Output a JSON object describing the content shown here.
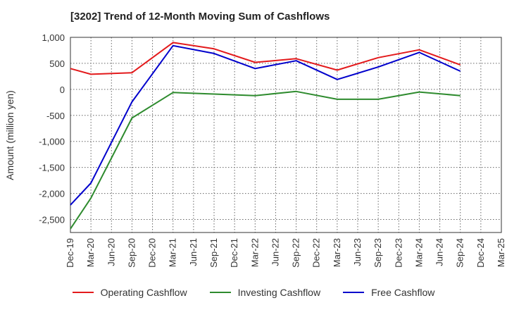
{
  "chart_data": {
    "type": "line",
    "title": "[3202]  Trend of 12-Month Moving Sum of Cashflows",
    "xlabel": "",
    "ylabel": "Amount (million yen)",
    "categories": [
      "Dec-19",
      "Mar-20",
      "Jun-20",
      "Sep-20",
      "Dec-20",
      "Mar-21",
      "Jun-21",
      "Sep-21",
      "Dec-21",
      "Mar-22",
      "Jun-22",
      "Sep-22",
      "Dec-22",
      "Mar-23",
      "Jun-23",
      "Sep-23",
      "Dec-23",
      "Mar-24",
      "Jun-24",
      "Sep-24",
      "Dec-24",
      "Mar-25"
    ],
    "ylim": [
      -2750,
      1000
    ],
    "yticks": [
      1000,
      500,
      0,
      -500,
      -1000,
      -1500,
      -2000,
      -2500
    ],
    "ytick_labels": [
      "1,000",
      "500",
      "0",
      "-500",
      "-1,000",
      "-1,500",
      "-2,000",
      "-2,500"
    ],
    "grid": true,
    "legend_position": "bottom",
    "series": [
      {
        "name": "Operating Cashflow",
        "color": "#e31a1c",
        "points": [
          [
            0,
            400
          ],
          [
            1,
            290
          ],
          [
            3,
            320
          ],
          [
            5,
            900
          ],
          [
            7,
            780
          ],
          [
            9,
            520
          ],
          [
            11,
            590
          ],
          [
            13,
            370
          ],
          [
            15,
            610
          ],
          [
            17,
            760
          ],
          [
            19,
            470
          ]
        ]
      },
      {
        "name": "Investing Cashflow",
        "color": "#2e8b2e",
        "points": [
          [
            0,
            -2680
          ],
          [
            1,
            -2090
          ],
          [
            3,
            -550
          ],
          [
            5,
            -60
          ],
          [
            7,
            -90
          ],
          [
            9,
            -120
          ],
          [
            11,
            -40
          ],
          [
            13,
            -190
          ],
          [
            15,
            -190
          ],
          [
            17,
            -50
          ],
          [
            19,
            -120
          ]
        ]
      },
      {
        "name": "Free Cashflow",
        "color": "#0000cc",
        "points": [
          [
            0,
            -2220
          ],
          [
            1,
            -1800
          ],
          [
            3,
            -240
          ],
          [
            5,
            840
          ],
          [
            7,
            690
          ],
          [
            9,
            400
          ],
          [
            11,
            550
          ],
          [
            13,
            190
          ],
          [
            15,
            430
          ],
          [
            17,
            710
          ],
          [
            19,
            350
          ]
        ]
      }
    ]
  }
}
